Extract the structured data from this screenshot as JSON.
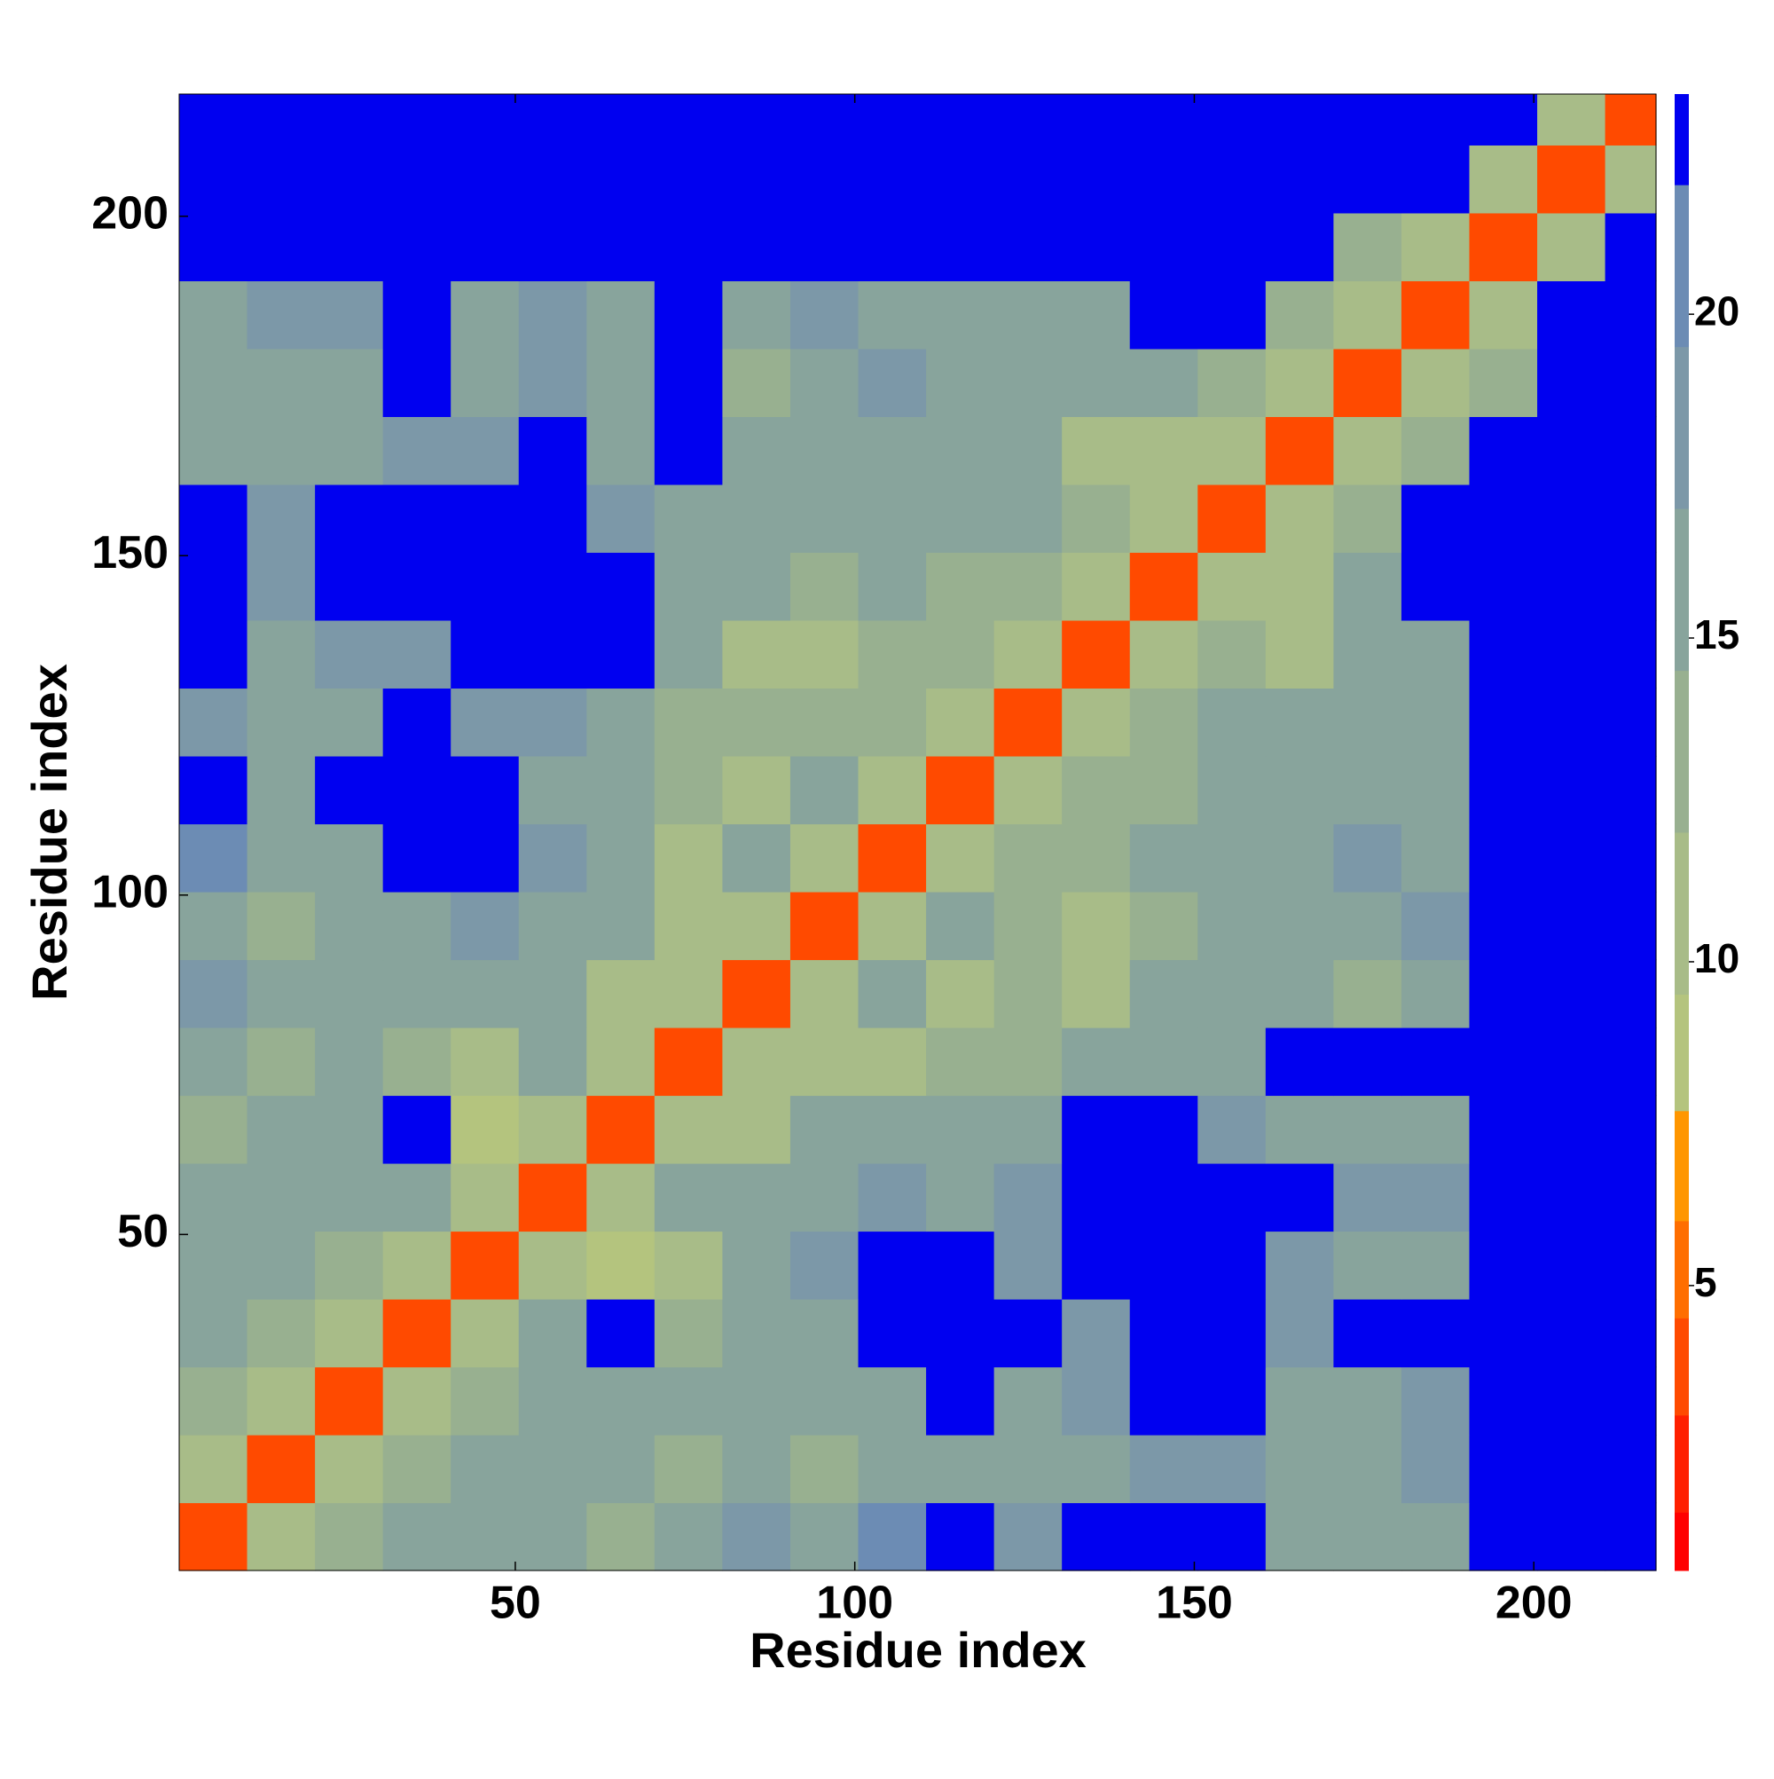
{
  "chart_data": {
    "type": "heatmap",
    "x_label": "Residue index",
    "y_label": "Residue index",
    "xlim": [
      0.5,
      218
    ],
    "ylim": [
      0.5,
      218
    ],
    "xticks": [
      50,
      100,
      150,
      200
    ],
    "yticks": [
      50,
      100,
      150,
      200
    ],
    "bin_edges": [
      0.5,
      10.5,
      20.5,
      30.5,
      40.5,
      50.5,
      60.5,
      70.5,
      80.5,
      90.5,
      100.5,
      110.5,
      120.5,
      130.5,
      140.5,
      150.5,
      160.5,
      170.5,
      180.5,
      190.5,
      200.5,
      210.5,
      218
    ],
    "zlim": [
      0.6,
      23.4
    ],
    "zticks": [
      5,
      10,
      15,
      20
    ],
    "colorscale": [
      {
        "max": 1.5,
        "color": "#ff0000"
      },
      {
        "max": 3,
        "color": "#ff2000"
      },
      {
        "max": 4.5,
        "color": "#ff4a00"
      },
      {
        "max": 6,
        "color": "#ff6e00"
      },
      {
        "max": 7.7,
        "color": "#ff9600"
      },
      {
        "max": 9.5,
        "color": "#b4c47e"
      },
      {
        "max": 12,
        "color": "#a8bc88"
      },
      {
        "max": 14.5,
        "color": "#98b090"
      },
      {
        "max": 17,
        "color": "#88a49c"
      },
      {
        "max": 19.5,
        "color": "#7c98a8"
      },
      {
        "max": 22,
        "color": "#6c8cb4"
      },
      {
        "max": 23.4,
        "color": "#0000f0"
      }
    ],
    "z": [
      [
        4,
        11,
        14,
        15,
        15,
        17,
        14,
        17,
        18,
        15,
        20,
        24,
        18,
        24,
        24,
        24,
        17,
        16,
        17,
        24,
        24,
        24
      ],
      [
        11,
        4,
        11,
        14,
        15,
        17,
        15,
        14,
        16,
        14,
        16,
        16,
        16,
        16,
        18,
        19,
        16,
        16,
        18,
        24,
        24,
        24
      ],
      [
        14,
        11,
        4,
        11,
        14,
        16,
        16,
        16,
        16,
        15,
        17,
        24,
        17,
        18,
        24,
        24,
        16,
        17,
        18,
        24,
        24,
        24
      ],
      [
        15,
        14,
        11,
        4,
        11,
        16,
        24,
        14,
        17,
        17,
        24,
        24,
        24,
        19,
        24,
        24,
        19,
        24,
        24,
        24,
        24,
        24
      ],
      [
        15,
        15,
        14,
        11,
        4,
        11,
        9,
        12,
        16,
        18,
        24,
        24,
        19,
        24,
        24,
        24,
        18,
        16,
        17,
        24,
        24,
        24
      ],
      [
        17,
        17,
        16,
        16,
        11,
        4,
        11,
        15,
        17,
        16,
        18,
        17,
        19,
        24,
        24,
        24,
        24,
        18,
        18,
        24,
        24,
        24
      ],
      [
        14,
        15,
        16,
        24,
        9,
        11,
        4,
        11,
        12,
        15,
        15,
        15,
        16,
        24,
        24,
        19,
        16,
        16,
        17,
        24,
        24,
        24
      ],
      [
        17,
        14,
        16,
        14,
        12,
        15,
        11,
        4,
        11,
        10,
        12,
        14,
        13,
        16,
        16,
        17,
        24,
        24,
        24,
        24,
        24,
        24
      ],
      [
        18,
        16,
        16,
        17,
        16,
        17,
        12,
        11,
        4,
        11,
        15,
        11,
        14,
        12,
        15,
        16,
        16,
        14,
        16,
        24,
        24,
        24
      ],
      [
        15,
        14,
        15,
        17,
        18,
        16,
        15,
        10,
        11,
        4,
        11,
        15,
        14,
        10,
        13,
        15,
        17,
        16,
        19,
        24,
        24,
        24
      ],
      [
        20,
        16,
        17,
        24,
        24,
        18,
        15,
        12,
        15,
        11,
        4,
        11,
        14,
        14,
        15,
        17,
        17,
        18,
        17,
        24,
        24,
        24
      ],
      [
        24,
        16,
        24,
        24,
        24,
        17,
        15,
        14,
        11,
        15,
        11,
        4,
        11,
        13,
        14,
        17,
        16,
        17,
        17,
        24,
        24,
        24
      ],
      [
        18,
        16,
        17,
        24,
        19,
        19,
        16,
        13,
        14,
        14,
        14,
        11,
        4,
        11,
        13,
        15,
        16,
        15,
        17,
        24,
        24,
        24
      ],
      [
        24,
        16,
        18,
        19,
        24,
        24,
        24,
        16,
        12,
        10,
        14,
        13,
        11,
        4,
        11,
        13,
        11,
        16,
        17,
        24,
        24,
        24
      ],
      [
        24,
        18,
        24,
        24,
        24,
        24,
        24,
        16,
        15,
        13,
        15,
        14,
        13,
        11,
        4,
        11,
        12,
        15,
        24,
        24,
        24,
        24
      ],
      [
        24,
        19,
        24,
        24,
        24,
        24,
        19,
        17,
        16,
        15,
        17,
        17,
        15,
        13,
        11,
        4,
        11,
        13,
        24,
        24,
        24,
        24
      ],
      [
        17,
        16,
        16,
        19,
        18,
        24,
        16,
        24,
        16,
        17,
        17,
        16,
        16,
        11,
        12,
        11,
        4,
        11,
        13,
        24,
        24,
        24
      ],
      [
        16,
        16,
        17,
        24,
        16,
        18,
        16,
        24,
        14,
        16,
        18,
        17,
        15,
        16,
        15,
        13,
        11,
        4,
        11,
        13,
        24,
        24
      ],
      [
        17,
        18,
        18,
        24,
        17,
        18,
        17,
        24,
        16,
        19,
        17,
        17,
        17,
        17,
        24,
        24,
        13,
        11,
        4,
        11,
        24,
        24
      ],
      [
        24,
        24,
        24,
        24,
        24,
        24,
        24,
        24,
        24,
        24,
        24,
        24,
        24,
        24,
        24,
        24,
        24,
        13,
        11,
        4,
        11,
        24
      ],
      [
        24,
        24,
        24,
        24,
        24,
        24,
        24,
        24,
        24,
        24,
        24,
        24,
        24,
        24,
        24,
        24,
        24,
        24,
        24,
        11,
        4,
        11
      ],
      [
        24,
        24,
        24,
        24,
        24,
        24,
        24,
        24,
        24,
        24,
        24,
        24,
        24,
        24,
        24,
        24,
        24,
        24,
        24,
        24,
        11,
        4
      ]
    ]
  }
}
